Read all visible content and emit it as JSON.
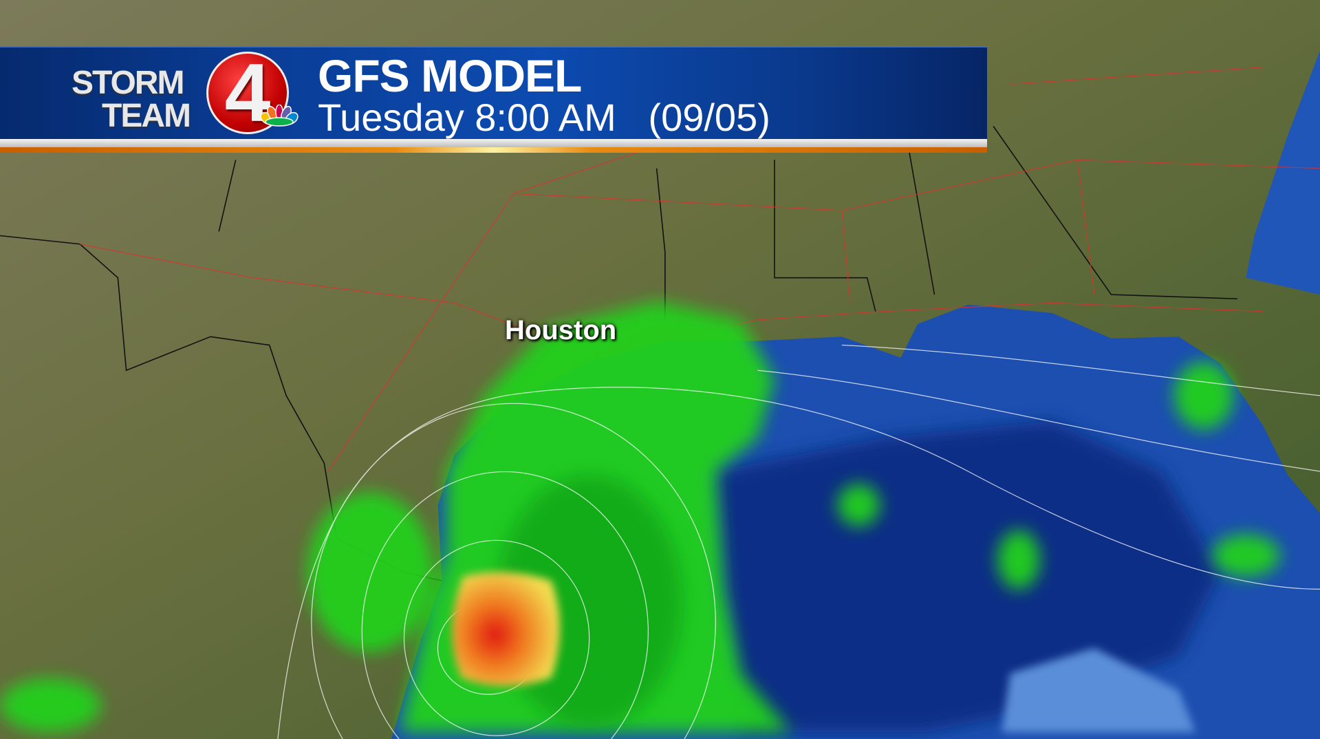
{
  "logo": {
    "line1": "STORM",
    "line2": "TEAM",
    "channel": "4",
    "network": "NBC peacock"
  },
  "header": {
    "title": "GFS MODEL",
    "day_time": "Tuesday 8:00 AM",
    "date": "(09/05)"
  },
  "map": {
    "city_label": "Houston",
    "colors": {
      "land": "#5c6b3c",
      "gulf": "#1c4fb0",
      "deep_gulf": "#0c2f86",
      "light_precip": "#22d41c",
      "heavy_precip": "#e82a10",
      "moderate_precip": "#f0d040",
      "roads": "#e03030",
      "banner_blue": "#0a3f9a",
      "accent_orange": "#e88a10"
    }
  }
}
